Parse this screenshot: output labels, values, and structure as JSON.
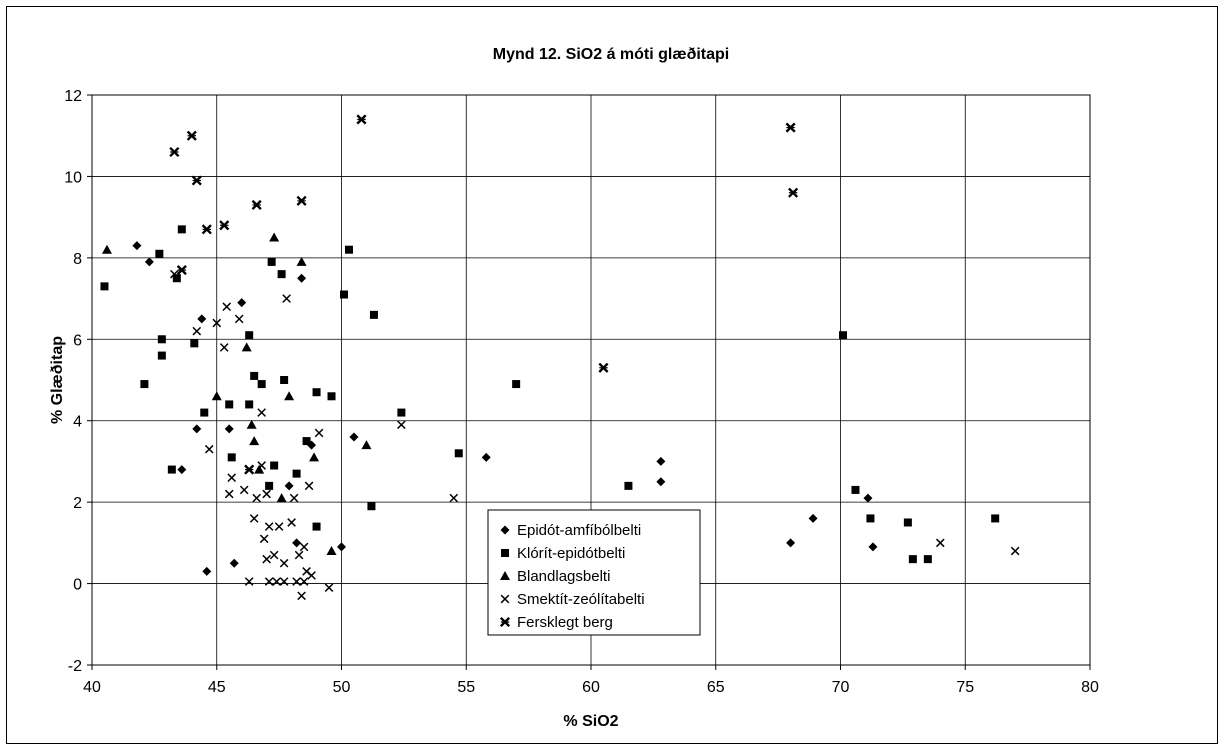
{
  "chart_data": {
    "type": "scatter",
    "title": "Mynd 12. SiO2 á móti glæðitapi",
    "xlabel": "% SiO2",
    "ylabel": "% Glæðitap",
    "xlim": [
      40,
      80
    ],
    "ylim": [
      -2,
      12
    ],
    "x_ticks": [
      "40",
      "45",
      "50",
      "55",
      "60",
      "65",
      "70",
      "75",
      "80"
    ],
    "y_ticks": [
      "-2",
      "0",
      "2",
      "4",
      "6",
      "8",
      "10",
      "12"
    ],
    "grid": true,
    "legend_position": "bottom-center",
    "series": [
      {
        "name": "Epidót-amfíbólbelti",
        "marker": "diamond",
        "points": [
          [
            41.8,
            8.3
          ],
          [
            42.3,
            7.9
          ],
          [
            44.4,
            6.5
          ],
          [
            46.0,
            6.9
          ],
          [
            48.4,
            7.5
          ],
          [
            44.2,
            3.8
          ],
          [
            45.5,
            3.8
          ],
          [
            44.6,
            0.3
          ],
          [
            45.7,
            0.5
          ],
          [
            47.9,
            2.4
          ],
          [
            48.8,
            3.4
          ],
          [
            48.2,
            1.0
          ],
          [
            50.0,
            0.9
          ],
          [
            50.5,
            3.6
          ],
          [
            55.8,
            3.1
          ],
          [
            62.8,
            3.0
          ],
          [
            62.8,
            2.5
          ],
          [
            68.0,
            1.0
          ],
          [
            68.9,
            1.6
          ],
          [
            71.1,
            2.1
          ],
          [
            71.3,
            0.9
          ],
          [
            43.6,
            2.8
          ]
        ]
      },
      {
        "name": "Klórít-epidótbelti",
        "marker": "square",
        "points": [
          [
            40.5,
            7.3
          ],
          [
            42.7,
            8.1
          ],
          [
            43.6,
            8.7
          ],
          [
            43.4,
            7.5
          ],
          [
            42.8,
            6.0
          ],
          [
            42.8,
            5.6
          ],
          [
            42.1,
            4.9
          ],
          [
            44.1,
            5.9
          ],
          [
            44.5,
            4.2
          ],
          [
            45.5,
            4.4
          ],
          [
            46.3,
            4.4
          ],
          [
            46.3,
            6.1
          ],
          [
            46.5,
            5.1
          ],
          [
            46.8,
            4.9
          ],
          [
            47.2,
            7.9
          ],
          [
            47.6,
            7.6
          ],
          [
            47.7,
            5.0
          ],
          [
            48.2,
            2.7
          ],
          [
            48.6,
            3.5
          ],
          [
            49.0,
            4.7
          ],
          [
            49.6,
            4.6
          ],
          [
            50.1,
            7.1
          ],
          [
            50.3,
            8.2
          ],
          [
            51.3,
            6.6
          ],
          [
            52.4,
            4.2
          ],
          [
            51.2,
            1.9
          ],
          [
            54.7,
            3.2
          ],
          [
            57.0,
            4.9
          ],
          [
            61.5,
            2.4
          ],
          [
            70.1,
            6.1
          ],
          [
            70.6,
            2.3
          ],
          [
            71.2,
            1.6
          ],
          [
            72.7,
            1.5
          ],
          [
            72.9,
            0.6
          ],
          [
            73.5,
            0.6
          ],
          [
            76.2,
            1.6
          ],
          [
            43.2,
            2.8
          ],
          [
            45.6,
            3.1
          ],
          [
            47.3,
            2.9
          ],
          [
            49.0,
            1.4
          ],
          [
            47.1,
            2.4
          ]
        ]
      },
      {
        "name": "Blandlagsbelti",
        "marker": "triangle",
        "points": [
          [
            40.6,
            8.2
          ],
          [
            47.3,
            8.5
          ],
          [
            48.4,
            7.9
          ],
          [
            45.0,
            4.6
          ],
          [
            46.2,
            5.8
          ],
          [
            46.5,
            3.5
          ],
          [
            46.7,
            2.8
          ],
          [
            47.9,
            4.6
          ],
          [
            48.9,
            3.1
          ],
          [
            51.0,
            3.4
          ],
          [
            49.6,
            0.8
          ],
          [
            46.4,
            3.9
          ],
          [
            47.6,
            2.1
          ]
        ]
      },
      {
        "name": "Smektít-zeólítabelti",
        "marker": "x",
        "points": [
          [
            43.3,
            7.6
          ],
          [
            44.2,
            6.2
          ],
          [
            45.0,
            6.4
          ],
          [
            45.3,
            5.8
          ],
          [
            45.4,
            6.8
          ],
          [
            45.9,
            6.5
          ],
          [
            46.8,
            4.2
          ],
          [
            47.8,
            7.0
          ],
          [
            44.7,
            3.3
          ],
          [
            45.5,
            2.2
          ],
          [
            45.6,
            2.6
          ],
          [
            46.1,
            2.3
          ],
          [
            46.5,
            1.6
          ],
          [
            46.6,
            2.1
          ],
          [
            46.8,
            2.9
          ],
          [
            46.9,
            1.1
          ],
          [
            47.0,
            0.6
          ],
          [
            47.1,
            1.4
          ],
          [
            47.3,
            0.7
          ],
          [
            47.5,
            1.4
          ],
          [
            47.7,
            0.5
          ],
          [
            48.0,
            1.5
          ],
          [
            48.1,
            2.1
          ],
          [
            48.3,
            0.7
          ],
          [
            48.5,
            0.9
          ],
          [
            48.6,
            0.3
          ],
          [
            48.8,
            0.2
          ],
          [
            48.4,
            -0.3
          ],
          [
            49.5,
            -0.1
          ],
          [
            49.1,
            3.7
          ],
          [
            52.4,
            3.9
          ],
          [
            54.5,
            2.1
          ],
          [
            74.0,
            1.0
          ],
          [
            77.0,
            0.8
          ],
          [
            48.7,
            2.4
          ],
          [
            47.0,
            2.2
          ],
          [
            46.3,
            0.05
          ],
          [
            47.1,
            0.05
          ],
          [
            47.4,
            0.05
          ],
          [
            47.7,
            0.05
          ],
          [
            48.2,
            0.05
          ],
          [
            48.5,
            0.05
          ]
        ]
      },
      {
        "name": "Fersklegt berg",
        "marker": "x-bold",
        "points": [
          [
            43.3,
            10.6
          ],
          [
            44.0,
            11.0
          ],
          [
            44.2,
            9.9
          ],
          [
            43.6,
            7.7
          ],
          [
            44.6,
            8.7
          ],
          [
            45.3,
            8.8
          ],
          [
            46.6,
            9.3
          ],
          [
            48.4,
            9.4
          ],
          [
            50.8,
            11.4
          ],
          [
            60.5,
            5.3
          ],
          [
            68.0,
            11.2
          ],
          [
            68.1,
            9.6
          ],
          [
            46.3,
            2.8
          ]
        ]
      }
    ]
  }
}
